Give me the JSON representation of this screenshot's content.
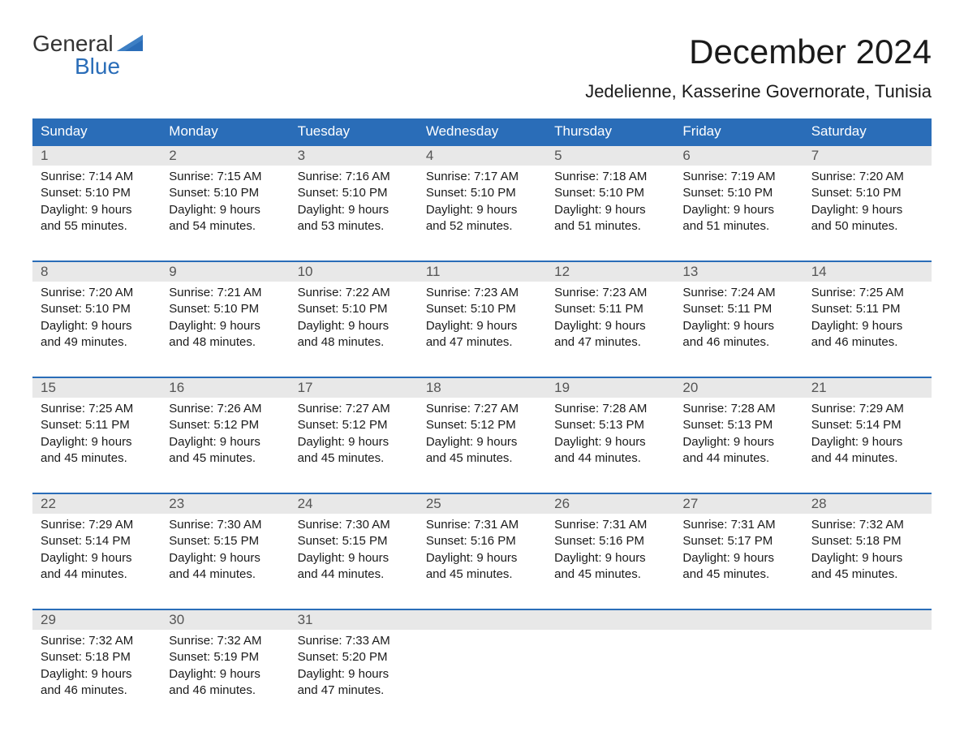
{
  "logo": {
    "text_top": "General",
    "text_bottom": "Blue",
    "color_top": "#333333",
    "color_bottom": "#2a6db8"
  },
  "title": "December 2024",
  "location": "Jedelienne, Kasserine Governorate, Tunisia",
  "accent_color": "#2a6db8",
  "daynum_bg": "#e8e8e8",
  "day_headers": [
    "Sunday",
    "Monday",
    "Tuesday",
    "Wednesday",
    "Thursday",
    "Friday",
    "Saturday"
  ],
  "weeks": [
    [
      {
        "num": "1",
        "sunrise": "Sunrise: 7:14 AM",
        "sunset": "Sunset: 5:10 PM",
        "dl1": "Daylight: 9 hours",
        "dl2": "and 55 minutes."
      },
      {
        "num": "2",
        "sunrise": "Sunrise: 7:15 AM",
        "sunset": "Sunset: 5:10 PM",
        "dl1": "Daylight: 9 hours",
        "dl2": "and 54 minutes."
      },
      {
        "num": "3",
        "sunrise": "Sunrise: 7:16 AM",
        "sunset": "Sunset: 5:10 PM",
        "dl1": "Daylight: 9 hours",
        "dl2": "and 53 minutes."
      },
      {
        "num": "4",
        "sunrise": "Sunrise: 7:17 AM",
        "sunset": "Sunset: 5:10 PM",
        "dl1": "Daylight: 9 hours",
        "dl2": "and 52 minutes."
      },
      {
        "num": "5",
        "sunrise": "Sunrise: 7:18 AM",
        "sunset": "Sunset: 5:10 PM",
        "dl1": "Daylight: 9 hours",
        "dl2": "and 51 minutes."
      },
      {
        "num": "6",
        "sunrise": "Sunrise: 7:19 AM",
        "sunset": "Sunset: 5:10 PM",
        "dl1": "Daylight: 9 hours",
        "dl2": "and 51 minutes."
      },
      {
        "num": "7",
        "sunrise": "Sunrise: 7:20 AM",
        "sunset": "Sunset: 5:10 PM",
        "dl1": "Daylight: 9 hours",
        "dl2": "and 50 minutes."
      }
    ],
    [
      {
        "num": "8",
        "sunrise": "Sunrise: 7:20 AM",
        "sunset": "Sunset: 5:10 PM",
        "dl1": "Daylight: 9 hours",
        "dl2": "and 49 minutes."
      },
      {
        "num": "9",
        "sunrise": "Sunrise: 7:21 AM",
        "sunset": "Sunset: 5:10 PM",
        "dl1": "Daylight: 9 hours",
        "dl2": "and 48 minutes."
      },
      {
        "num": "10",
        "sunrise": "Sunrise: 7:22 AM",
        "sunset": "Sunset: 5:10 PM",
        "dl1": "Daylight: 9 hours",
        "dl2": "and 48 minutes."
      },
      {
        "num": "11",
        "sunrise": "Sunrise: 7:23 AM",
        "sunset": "Sunset: 5:10 PM",
        "dl1": "Daylight: 9 hours",
        "dl2": "and 47 minutes."
      },
      {
        "num": "12",
        "sunrise": "Sunrise: 7:23 AM",
        "sunset": "Sunset: 5:11 PM",
        "dl1": "Daylight: 9 hours",
        "dl2": "and 47 minutes."
      },
      {
        "num": "13",
        "sunrise": "Sunrise: 7:24 AM",
        "sunset": "Sunset: 5:11 PM",
        "dl1": "Daylight: 9 hours",
        "dl2": "and 46 minutes."
      },
      {
        "num": "14",
        "sunrise": "Sunrise: 7:25 AM",
        "sunset": "Sunset: 5:11 PM",
        "dl1": "Daylight: 9 hours",
        "dl2": "and 46 minutes."
      }
    ],
    [
      {
        "num": "15",
        "sunrise": "Sunrise: 7:25 AM",
        "sunset": "Sunset: 5:11 PM",
        "dl1": "Daylight: 9 hours",
        "dl2": "and 45 minutes."
      },
      {
        "num": "16",
        "sunrise": "Sunrise: 7:26 AM",
        "sunset": "Sunset: 5:12 PM",
        "dl1": "Daylight: 9 hours",
        "dl2": "and 45 minutes."
      },
      {
        "num": "17",
        "sunrise": "Sunrise: 7:27 AM",
        "sunset": "Sunset: 5:12 PM",
        "dl1": "Daylight: 9 hours",
        "dl2": "and 45 minutes."
      },
      {
        "num": "18",
        "sunrise": "Sunrise: 7:27 AM",
        "sunset": "Sunset: 5:12 PM",
        "dl1": "Daylight: 9 hours",
        "dl2": "and 45 minutes."
      },
      {
        "num": "19",
        "sunrise": "Sunrise: 7:28 AM",
        "sunset": "Sunset: 5:13 PM",
        "dl1": "Daylight: 9 hours",
        "dl2": "and 44 minutes."
      },
      {
        "num": "20",
        "sunrise": "Sunrise: 7:28 AM",
        "sunset": "Sunset: 5:13 PM",
        "dl1": "Daylight: 9 hours",
        "dl2": "and 44 minutes."
      },
      {
        "num": "21",
        "sunrise": "Sunrise: 7:29 AM",
        "sunset": "Sunset: 5:14 PM",
        "dl1": "Daylight: 9 hours",
        "dl2": "and 44 minutes."
      }
    ],
    [
      {
        "num": "22",
        "sunrise": "Sunrise: 7:29 AM",
        "sunset": "Sunset: 5:14 PM",
        "dl1": "Daylight: 9 hours",
        "dl2": "and 44 minutes."
      },
      {
        "num": "23",
        "sunrise": "Sunrise: 7:30 AM",
        "sunset": "Sunset: 5:15 PM",
        "dl1": "Daylight: 9 hours",
        "dl2": "and 44 minutes."
      },
      {
        "num": "24",
        "sunrise": "Sunrise: 7:30 AM",
        "sunset": "Sunset: 5:15 PM",
        "dl1": "Daylight: 9 hours",
        "dl2": "and 44 minutes."
      },
      {
        "num": "25",
        "sunrise": "Sunrise: 7:31 AM",
        "sunset": "Sunset: 5:16 PM",
        "dl1": "Daylight: 9 hours",
        "dl2": "and 45 minutes."
      },
      {
        "num": "26",
        "sunrise": "Sunrise: 7:31 AM",
        "sunset": "Sunset: 5:16 PM",
        "dl1": "Daylight: 9 hours",
        "dl2": "and 45 minutes."
      },
      {
        "num": "27",
        "sunrise": "Sunrise: 7:31 AM",
        "sunset": "Sunset: 5:17 PM",
        "dl1": "Daylight: 9 hours",
        "dl2": "and 45 minutes."
      },
      {
        "num": "28",
        "sunrise": "Sunrise: 7:32 AM",
        "sunset": "Sunset: 5:18 PM",
        "dl1": "Daylight: 9 hours",
        "dl2": "and 45 minutes."
      }
    ],
    [
      {
        "num": "29",
        "sunrise": "Sunrise: 7:32 AM",
        "sunset": "Sunset: 5:18 PM",
        "dl1": "Daylight: 9 hours",
        "dl2": "and 46 minutes."
      },
      {
        "num": "30",
        "sunrise": "Sunrise: 7:32 AM",
        "sunset": "Sunset: 5:19 PM",
        "dl1": "Daylight: 9 hours",
        "dl2": "and 46 minutes."
      },
      {
        "num": "31",
        "sunrise": "Sunrise: 7:33 AM",
        "sunset": "Sunset: 5:20 PM",
        "dl1": "Daylight: 9 hours",
        "dl2": "and 47 minutes."
      },
      null,
      null,
      null,
      null
    ]
  ]
}
